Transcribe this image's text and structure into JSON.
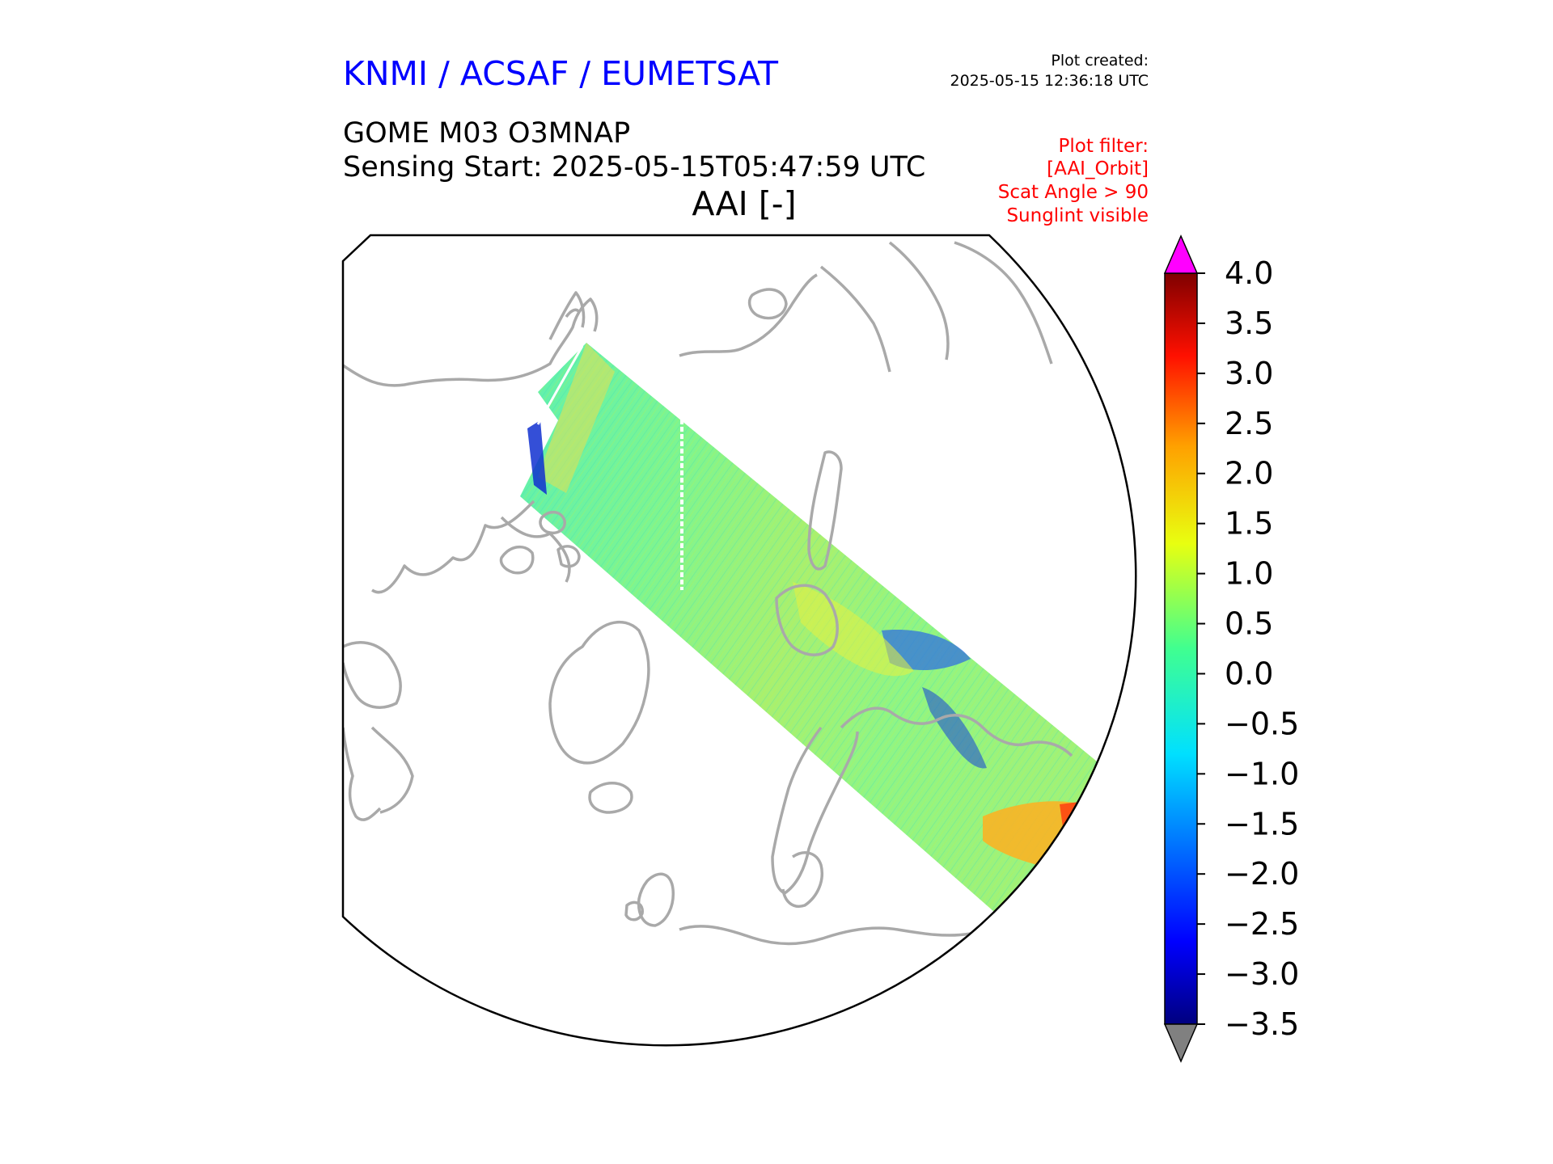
{
  "header": {
    "org": "KNMI / ACSAF / EUMETSAT",
    "created_label": "Plot created:",
    "created_value": "2025-05-15 12:36:18 UTC",
    "product": "GOME M03 O3MNAP",
    "sensing_start": "Sensing Start: 2025-05-15T05:47:59 UTC"
  },
  "filter": {
    "label": "Plot filter:",
    "lines": [
      "[AAI_Orbit]",
      "Scat Angle > 90",
      "Sunglint visible"
    ]
  },
  "chart_data": {
    "type": "heatmap",
    "title": "AAI [-]",
    "projection": "north polar stereographic",
    "variable": "AAI [-]",
    "colorbar": {
      "min": -3.5,
      "max": 4.0,
      "colormap": "jet",
      "extend": "both",
      "over_color": "#ff00ff",
      "under_color": "#808080",
      "ticks": [
        4.0,
        3.5,
        3.0,
        2.5,
        2.0,
        1.5,
        1.0,
        0.5,
        0.0,
        -0.5,
        -1.0,
        -1.5,
        -2.0,
        -2.5,
        -3.0,
        -3.5
      ],
      "tick_labels": [
        "4.0",
        "3.5",
        "3.0",
        "2.5",
        "2.0",
        "1.5",
        "1.0",
        "0.5",
        "0.0",
        "−0.5",
        "−1.0",
        "−1.5",
        "−2.0",
        "−2.5",
        "−3.0",
        "−3.5"
      ]
    },
    "swath_value_summary": {
      "typical": 0.2,
      "range": [
        -3.5,
        3.5
      ]
    }
  }
}
